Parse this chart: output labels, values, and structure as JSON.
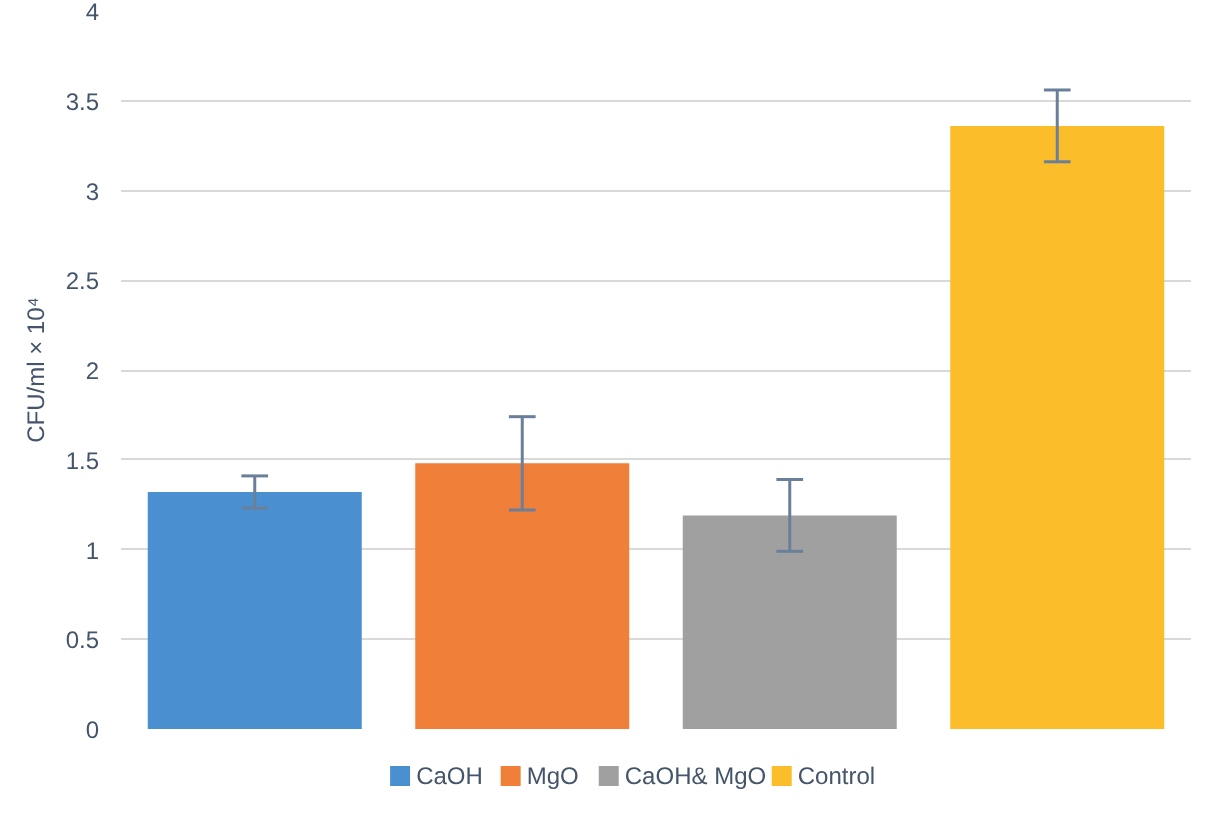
{
  "chart_data": {
    "type": "bar",
    "ylabel": "CFU/ml × 10⁴",
    "categories": [
      null,
      null,
      null,
      null
    ],
    "series": [
      {
        "name": "CaOH",
        "color": "#4a90d0",
        "values": [
          1.32,
          null,
          null,
          null
        ],
        "errors": [
          0.09,
          null,
          null,
          null
        ]
      },
      {
        "name": "MgO",
        "color": "#f07f3a",
        "values": [
          null,
          1.48,
          null,
          null
        ],
        "errors": [
          null,
          0.26,
          null,
          null
        ]
      },
      {
        "name": "CaOH& MgO",
        "color": "#a0a0a0",
        "values": [
          null,
          null,
          1.19,
          null
        ],
        "errors": [
          null,
          null,
          0.2,
          null
        ]
      },
      {
        "name": "Control",
        "color": "#fcbd2a",
        "values": [
          null,
          null,
          null,
          3.36
        ],
        "errors": [
          null,
          null,
          null,
          0.2
        ]
      }
    ],
    "ylim": [
      0,
      4
    ],
    "yticks": [
      0,
      0.5,
      1,
      1.5,
      2,
      2.5,
      3,
      3.5,
      4
    ],
    "grid": "y",
    "legend": "bottom"
  }
}
